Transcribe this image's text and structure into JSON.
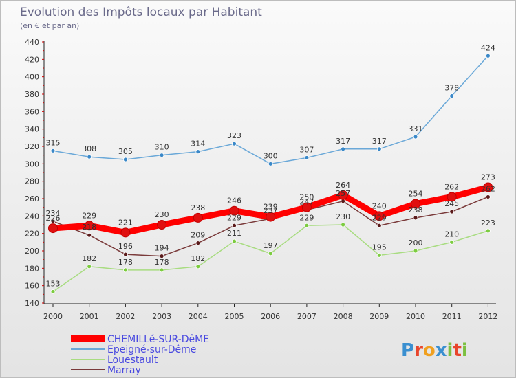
{
  "chart_data": {
    "type": "line",
    "title": "Evolution des Impôts locaux par Habitant",
    "subtitle": "(en € et par an)",
    "xlabel": "",
    "ylabel": "",
    "ylim": [
      140,
      440
    ],
    "yticks": [
      140,
      160,
      180,
      200,
      220,
      240,
      260,
      280,
      300,
      320,
      340,
      360,
      380,
      400,
      420,
      440
    ],
    "x": [
      "2000",
      "2001",
      "2002",
      "2003",
      "2004",
      "2005",
      "2006",
      "2007",
      "2008",
      "2009",
      "2010",
      "2011",
      "2012"
    ],
    "grid": false,
    "legend_position": "bottom-left",
    "series": [
      {
        "name": "CHEMILLé-SUR-DêME",
        "color": "#ff0000",
        "marker": "#e01010",
        "values": [
          226,
          229,
          221,
          230,
          238,
          246,
          239,
          250,
          264,
          240,
          254,
          262,
          273
        ]
      },
      {
        "name": "Epeigné-sur-Dême",
        "color": "#6aa8d8",
        "marker": "#3a88c8",
        "values": [
          315,
          308,
          305,
          310,
          314,
          323,
          300,
          307,
          317,
          317,
          331,
          378,
          424
        ]
      },
      {
        "name": "Louestault",
        "color": "#a8dc80",
        "marker": "#7ccc40",
        "values": [
          153,
          182,
          178,
          178,
          182,
          211,
          197,
          229,
          230,
          195,
          200,
          210,
          223
        ]
      },
      {
        "name": "Marray",
        "color": "#7a3a3a",
        "marker": "#5a1a1a",
        "values": [
          234,
          218,
          196,
          194,
          209,
          229,
          237,
          247,
          257,
          229,
          238,
          245,
          262
        ]
      }
    ],
    "data_labels": {
      "CHEMILLé-SUR-DêME": [
        "226",
        "229",
        "221",
        "230",
        "238",
        "246",
        "239",
        "250",
        "264",
        "240",
        "254",
        "262",
        "273"
      ],
      "Epeigné-sur-Dême": [
        "315",
        "308",
        "305",
        "310",
        "314",
        "323",
        "300",
        "307",
        "317",
        "317",
        "331",
        "378",
        "424"
      ],
      "Louestault": [
        "153",
        "182",
        "178",
        "178",
        "182",
        "211",
        "197",
        "229",
        "230",
        "195",
        "200",
        "210",
        "223"
      ],
      "Marray": [
        "234",
        "218",
        "196",
        "194",
        "209",
        "229",
        "237",
        "247",
        "257",
        "229",
        "238",
        "245",
        "262"
      ]
    }
  },
  "logo": {
    "text": "Proxiti"
  }
}
